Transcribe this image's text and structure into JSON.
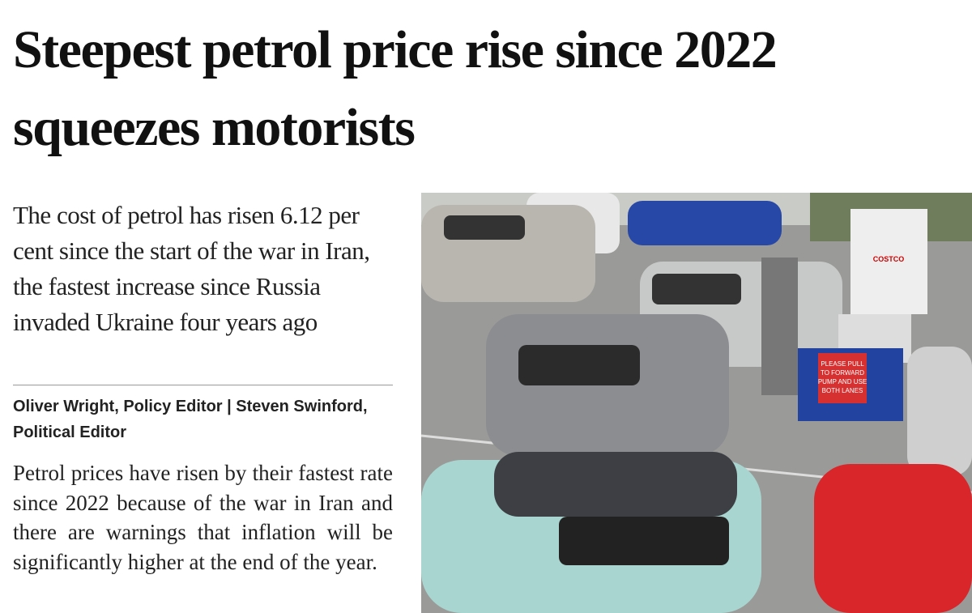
{
  "article": {
    "headline": "Steepest petrol price rise since 2022 squeezes motorists",
    "standfirst": "The cost of petrol has risen 6.12 per cent since the start of the war in Iran, the fastest increase since Russia invaded Ukraine four years ago",
    "byline": "Oliver Wright, Policy Editor | Steven Swinford, Political Editor",
    "body": "Petrol prices have risen by their fastest rate since 2022 because of the war in Iran and there are warnings that inflation will be significantly higher at the end of the year.",
    "photo": {
      "sign": [
        "PLEASE PULL",
        "TO FORWARD",
        "PUMP AND USE",
        "BOTH LANES"
      ],
      "brand": "COSTCO"
    }
  }
}
